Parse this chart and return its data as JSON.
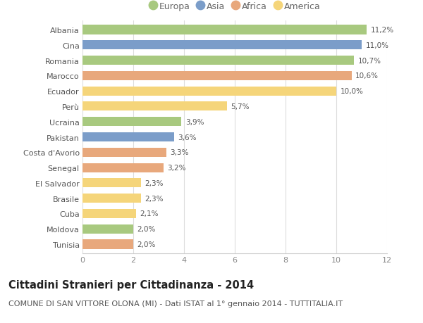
{
  "categories": [
    "Albania",
    "Cina",
    "Romania",
    "Marocco",
    "Ecuador",
    "Perù",
    "Ucraina",
    "Pakistan",
    "Costa d'Avorio",
    "Senegal",
    "El Salvador",
    "Brasile",
    "Cuba",
    "Moldova",
    "Tunisia"
  ],
  "values": [
    11.2,
    11.0,
    10.7,
    10.6,
    10.0,
    5.7,
    3.9,
    3.6,
    3.3,
    3.2,
    2.3,
    2.3,
    2.1,
    2.0,
    2.0
  ],
  "labels": [
    "11,2%",
    "11,0%",
    "10,7%",
    "10,6%",
    "10,0%",
    "5,7%",
    "3,9%",
    "3,6%",
    "3,3%",
    "3,2%",
    "2,3%",
    "2,3%",
    "2,1%",
    "2,0%",
    "2,0%"
  ],
  "continents": [
    "Europa",
    "Asia",
    "Europa",
    "Africa",
    "America",
    "America",
    "Europa",
    "Asia",
    "Africa",
    "Africa",
    "America",
    "America",
    "America",
    "Europa",
    "Africa"
  ],
  "colors": {
    "Europa": "#a8c97f",
    "Asia": "#7b9dc9",
    "Africa": "#e8a87c",
    "America": "#f5d57a"
  },
  "legend_order": [
    "Europa",
    "Asia",
    "Africa",
    "America"
  ],
  "title": "Cittadini Stranieri per Cittadinanza - 2014",
  "subtitle": "COMUNE DI SAN VITTORE OLONA (MI) - Dati ISTAT al 1° gennaio 2014 - TUTTITALIA.IT",
  "xlim": [
    0,
    12
  ],
  "xticks": [
    0,
    2,
    4,
    6,
    8,
    10,
    12
  ],
  "bg_color": "#ffffff",
  "title_fontsize": 10.5,
  "subtitle_fontsize": 8,
  "label_fontsize": 7.5,
  "tick_fontsize": 8,
  "legend_fontsize": 9
}
